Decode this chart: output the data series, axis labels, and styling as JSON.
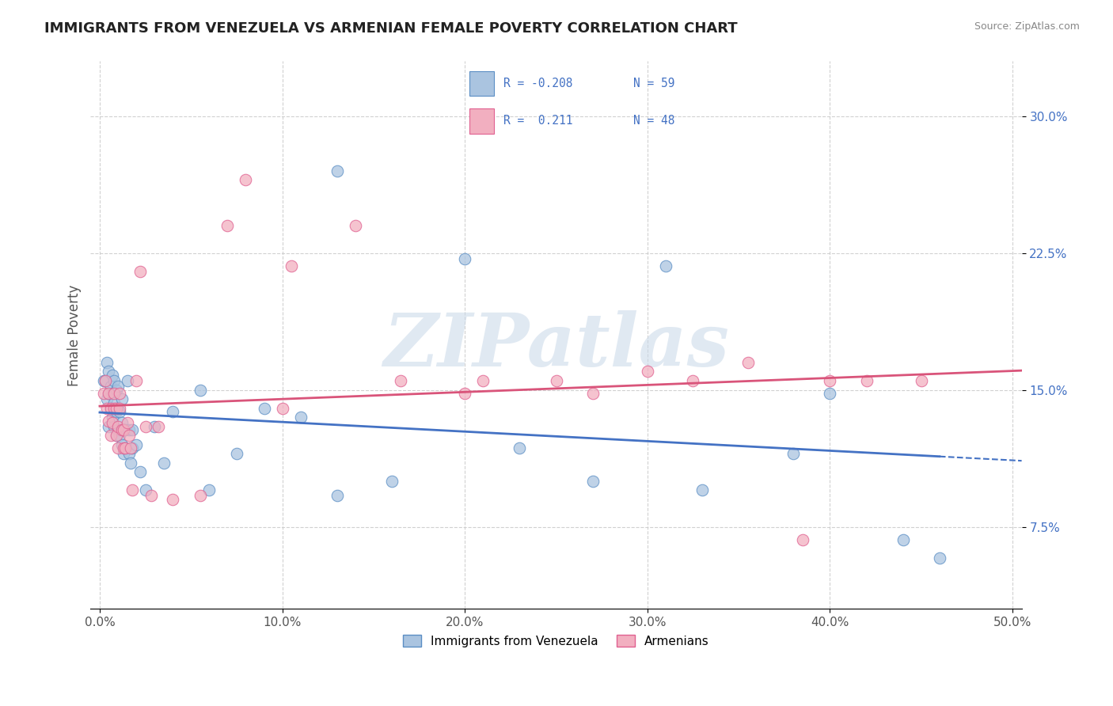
{
  "title": "IMMIGRANTS FROM VENEZUELA VS ARMENIAN FEMALE POVERTY CORRELATION CHART",
  "source_text": "Source: ZipAtlas.com",
  "ylabel": "Female Poverty",
  "xlim": [
    -0.005,
    0.505
  ],
  "ylim": [
    0.03,
    0.33
  ],
  "xticks": [
    0.0,
    0.1,
    0.2,
    0.3,
    0.4,
    0.5
  ],
  "xtick_labels": [
    "0.0%",
    "10.0%",
    "20.0%",
    "30.0%",
    "40.0%",
    "50.0%"
  ],
  "ytick_positions": [
    0.075,
    0.15,
    0.225,
    0.3
  ],
  "ytick_labels": [
    "7.5%",
    "15.0%",
    "22.5%",
    "30.0%"
  ],
  "blue_color": "#aac4e0",
  "pink_color": "#f2afc0",
  "blue_edge_color": "#5b8ec4",
  "pink_edge_color": "#e06090",
  "blue_line_color": "#4472c4",
  "pink_line_color": "#d9547a",
  "watermark": "ZIPatlas",
  "series1_label": "Immigrants from Venezuela",
  "series2_label": "Armenians",
  "blue_x": [
    0.002,
    0.003,
    0.004,
    0.004,
    0.005,
    0.005,
    0.005,
    0.006,
    0.006,
    0.007,
    0.007,
    0.007,
    0.008,
    0.008,
    0.008,
    0.009,
    0.009,
    0.009,
    0.01,
    0.01,
    0.01,
    0.011,
    0.011,
    0.012,
    0.012,
    0.012,
    0.013,
    0.013,
    0.014,
    0.014,
    0.015,
    0.016,
    0.016,
    0.017,
    0.018,
    0.018,
    0.02,
    0.022,
    0.025,
    0.03,
    0.035,
    0.04,
    0.055,
    0.06,
    0.075,
    0.09,
    0.11,
    0.13,
    0.16,
    0.2,
    0.23,
    0.27,
    0.33,
    0.38,
    0.13,
    0.31,
    0.4,
    0.44,
    0.46
  ],
  "blue_y": [
    0.155,
    0.155,
    0.145,
    0.165,
    0.13,
    0.148,
    0.16,
    0.14,
    0.152,
    0.135,
    0.148,
    0.158,
    0.13,
    0.143,
    0.155,
    0.125,
    0.138,
    0.15,
    0.128,
    0.14,
    0.152,
    0.125,
    0.138,
    0.12,
    0.132,
    0.145,
    0.115,
    0.128,
    0.118,
    0.128,
    0.155,
    0.115,
    0.128,
    0.11,
    0.118,
    0.128,
    0.12,
    0.105,
    0.095,
    0.13,
    0.11,
    0.138,
    0.15,
    0.095,
    0.115,
    0.14,
    0.135,
    0.092,
    0.1,
    0.222,
    0.118,
    0.1,
    0.095,
    0.115,
    0.27,
    0.218,
    0.148,
    0.068,
    0.058
  ],
  "pink_x": [
    0.002,
    0.003,
    0.004,
    0.005,
    0.005,
    0.006,
    0.006,
    0.007,
    0.008,
    0.008,
    0.009,
    0.009,
    0.01,
    0.01,
    0.011,
    0.011,
    0.012,
    0.013,
    0.013,
    0.014,
    0.015,
    0.016,
    0.017,
    0.018,
    0.02,
    0.022,
    0.025,
    0.028,
    0.032,
    0.04,
    0.055,
    0.07,
    0.1,
    0.14,
    0.165,
    0.21,
    0.27,
    0.3,
    0.325,
    0.355,
    0.385,
    0.42,
    0.45,
    0.2,
    0.25,
    0.4,
    0.08,
    0.105
  ],
  "pink_y": [
    0.148,
    0.155,
    0.14,
    0.133,
    0.148,
    0.125,
    0.14,
    0.132,
    0.14,
    0.148,
    0.125,
    0.14,
    0.118,
    0.13,
    0.14,
    0.148,
    0.128,
    0.118,
    0.128,
    0.118,
    0.132,
    0.125,
    0.118,
    0.095,
    0.155,
    0.215,
    0.13,
    0.092,
    0.13,
    0.09,
    0.092,
    0.24,
    0.14,
    0.24,
    0.155,
    0.155,
    0.148,
    0.16,
    0.155,
    0.165,
    0.068,
    0.155,
    0.155,
    0.148,
    0.155,
    0.155,
    0.265,
    0.218
  ]
}
